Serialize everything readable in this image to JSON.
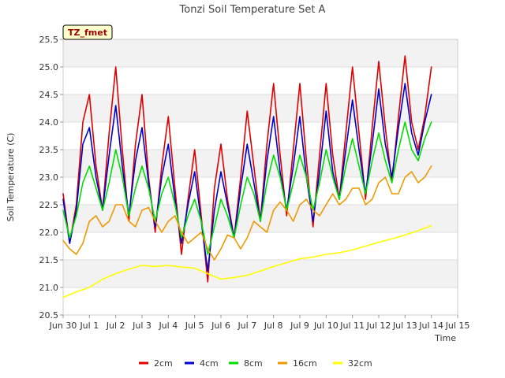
{
  "chart_data": {
    "type": "line",
    "title": "Tonzi Soil Temperature Set A",
    "xlabel": "Time",
    "ylabel": "Soil Temperature (C)",
    "site_tag": "TZ_fmet",
    "xlim": [
      0,
      15
    ],
    "ylim": [
      20.5,
      25.5
    ],
    "x_ticks": [
      {
        "value": 0,
        "label": "Jun 30"
      },
      {
        "value": 1,
        "label": "Jul 1"
      },
      {
        "value": 2,
        "label": "Jul 2"
      },
      {
        "value": 3,
        "label": "Jul 3"
      },
      {
        "value": 4,
        "label": "Jul 4"
      },
      {
        "value": 5,
        "label": "Jul 5"
      },
      {
        "value": 6,
        "label": "Jul 6"
      },
      {
        "value": 7,
        "label": "Jul 7"
      },
      {
        "value": 8,
        "label": "Jul 8"
      },
      {
        "value": 9,
        "label": "Jul 9"
      },
      {
        "value": 10,
        "label": "Jul 10"
      },
      {
        "value": 11,
        "label": "Jul 11"
      },
      {
        "value": 12,
        "label": "Jul 12"
      },
      {
        "value": 13,
        "label": "Jul 13"
      },
      {
        "value": 14,
        "label": "Jul 14"
      },
      {
        "value": 15,
        "label": "Jul 15"
      }
    ],
    "y_ticks": [
      {
        "value": 20.5,
        "label": "20.5"
      },
      {
        "value": 21.0,
        "label": "21.0"
      },
      {
        "value": 21.5,
        "label": "21.5"
      },
      {
        "value": 22.0,
        "label": "22.0"
      },
      {
        "value": 22.5,
        "label": "22.5"
      },
      {
        "value": 23.0,
        "label": "23.0"
      },
      {
        "value": 23.5,
        "label": "23.5"
      },
      {
        "value": 24.0,
        "label": "24.0"
      },
      {
        "value": 24.5,
        "label": "24.5"
      },
      {
        "value": 25.0,
        "label": "25.0"
      },
      {
        "value": 25.5,
        "label": "25.5"
      }
    ],
    "grid": true,
    "background_bands": "alternating grey bands between y gridlines",
    "legend_position": "bottom",
    "series": [
      {
        "name": "2cm",
        "color": "#dd0000",
        "x": [
          0.0,
          0.25,
          0.5,
          0.75,
          1.0,
          1.25,
          1.5,
          1.75,
          2.0,
          2.25,
          2.5,
          2.75,
          3.0,
          3.25,
          3.5,
          3.75,
          4.0,
          4.25,
          4.5,
          4.75,
          5.0,
          5.25,
          5.5,
          5.75,
          6.0,
          6.25,
          6.5,
          6.75,
          7.0,
          7.25,
          7.5,
          7.75,
          8.0,
          8.25,
          8.5,
          8.75,
          9.0,
          9.25,
          9.5,
          9.75,
          10.0,
          10.25,
          10.5,
          10.75,
          11.0,
          11.25,
          11.5,
          11.75,
          12.0,
          12.25,
          12.5,
          12.75,
          13.0,
          13.25,
          13.5,
          13.75,
          14.0
        ],
        "y": [
          22.7,
          21.8,
          22.5,
          24.0,
          24.5,
          23.2,
          22.4,
          23.8,
          25.0,
          23.5,
          22.2,
          23.6,
          24.5,
          23.0,
          22.0,
          23.2,
          24.1,
          22.8,
          21.6,
          22.6,
          23.5,
          22.3,
          21.1,
          22.8,
          23.6,
          22.6,
          21.9,
          23.0,
          24.2,
          23.2,
          22.2,
          23.6,
          24.7,
          23.4,
          22.3,
          23.5,
          24.7,
          23.3,
          22.1,
          23.4,
          24.7,
          23.4,
          22.6,
          23.8,
          25.0,
          23.8,
          22.6,
          23.9,
          25.1,
          23.9,
          22.9,
          24.1,
          25.2,
          24.0,
          23.5,
          24.1,
          25.0
        ]
      },
      {
        "name": "4cm",
        "color": "#0000cc",
        "x": [
          0.0,
          0.25,
          0.5,
          0.75,
          1.0,
          1.25,
          1.5,
          1.75,
          2.0,
          2.25,
          2.5,
          2.75,
          3.0,
          3.25,
          3.5,
          3.75,
          4.0,
          4.25,
          4.5,
          4.75,
          5.0,
          5.25,
          5.5,
          5.75,
          6.0,
          6.25,
          6.5,
          6.75,
          7.0,
          7.25,
          7.5,
          7.75,
          8.0,
          8.25,
          8.5,
          8.75,
          9.0,
          9.25,
          9.5,
          9.75,
          10.0,
          10.25,
          10.5,
          10.75,
          11.0,
          11.25,
          11.5,
          11.75,
          12.0,
          12.25,
          12.5,
          12.75,
          13.0,
          13.25,
          13.5,
          13.75,
          14.0
        ],
        "y": [
          22.6,
          21.8,
          22.4,
          23.6,
          23.9,
          23.0,
          22.4,
          23.4,
          24.3,
          23.2,
          22.3,
          23.3,
          23.9,
          22.9,
          22.1,
          23.0,
          23.6,
          22.6,
          21.8,
          22.5,
          23.1,
          22.2,
          21.3,
          22.4,
          23.1,
          22.5,
          21.9,
          22.8,
          23.6,
          22.9,
          22.2,
          23.3,
          24.1,
          23.1,
          22.4,
          23.2,
          24.1,
          23.0,
          22.2,
          23.1,
          24.2,
          23.1,
          22.6,
          23.5,
          24.4,
          23.5,
          22.7,
          23.6,
          24.6,
          23.6,
          23.0,
          23.9,
          24.7,
          23.8,
          23.4,
          24.0,
          24.5
        ]
      },
      {
        "name": "8cm",
        "color": "#00dd00",
        "x": [
          0.0,
          0.25,
          0.5,
          0.75,
          1.0,
          1.25,
          1.5,
          1.75,
          2.0,
          2.25,
          2.5,
          2.75,
          3.0,
          3.25,
          3.5,
          3.75,
          4.0,
          4.25,
          4.5,
          4.75,
          5.0,
          5.25,
          5.5,
          5.75,
          6.0,
          6.25,
          6.5,
          6.75,
          7.0,
          7.25,
          7.5,
          7.75,
          8.0,
          8.25,
          8.5,
          8.75,
          9.0,
          9.25,
          9.5,
          9.75,
          10.0,
          10.25,
          10.5,
          10.75,
          11.0,
          11.25,
          11.5,
          11.75,
          12.0,
          12.25,
          12.5,
          12.75,
          13.0,
          13.25,
          13.5,
          13.75,
          14.0
        ],
        "y": [
          22.4,
          21.9,
          22.3,
          22.9,
          23.2,
          22.8,
          22.4,
          22.9,
          23.5,
          23.0,
          22.3,
          22.8,
          23.2,
          22.8,
          22.2,
          22.7,
          23.0,
          22.5,
          21.9,
          22.3,
          22.6,
          22.2,
          21.6,
          22.1,
          22.6,
          22.3,
          21.9,
          22.5,
          23.0,
          22.7,
          22.2,
          22.9,
          23.4,
          23.0,
          22.4,
          22.9,
          23.4,
          23.0,
          22.4,
          22.9,
          23.5,
          23.0,
          22.6,
          23.2,
          23.7,
          23.2,
          22.7,
          23.3,
          23.8,
          23.3,
          22.9,
          23.5,
          24.0,
          23.5,
          23.3,
          23.7,
          24.0
        ]
      },
      {
        "name": "16cm",
        "color": "#ee9900",
        "x": [
          0.0,
          0.25,
          0.5,
          0.75,
          1.0,
          1.25,
          1.5,
          1.75,
          2.0,
          2.25,
          2.5,
          2.75,
          3.0,
          3.25,
          3.5,
          3.75,
          4.0,
          4.25,
          4.5,
          4.75,
          5.0,
          5.25,
          5.5,
          5.75,
          6.0,
          6.25,
          6.5,
          6.75,
          7.0,
          7.25,
          7.5,
          7.75,
          8.0,
          8.25,
          8.5,
          8.75,
          9.0,
          9.25,
          9.5,
          9.75,
          10.0,
          10.25,
          10.5,
          10.75,
          11.0,
          11.25,
          11.5,
          11.75,
          12.0,
          12.25,
          12.5,
          12.75,
          13.0,
          13.25,
          13.5,
          13.75,
          14.0
        ],
        "y": [
          21.85,
          21.7,
          21.6,
          21.8,
          22.2,
          22.3,
          22.1,
          22.2,
          22.5,
          22.5,
          22.2,
          22.1,
          22.4,
          22.45,
          22.2,
          22.0,
          22.2,
          22.3,
          22.0,
          21.8,
          21.9,
          22.0,
          21.7,
          21.5,
          21.7,
          21.95,
          21.9,
          21.7,
          21.9,
          22.2,
          22.1,
          22.0,
          22.4,
          22.55,
          22.4,
          22.2,
          22.5,
          22.6,
          22.4,
          22.3,
          22.5,
          22.7,
          22.5,
          22.6,
          22.8,
          22.8,
          22.5,
          22.6,
          22.9,
          23.0,
          22.7,
          22.7,
          23.0,
          23.1,
          22.9,
          23.0,
          23.2
        ]
      },
      {
        "name": "32cm",
        "color": "#ffff00",
        "x": [
          0.0,
          0.5,
          1.0,
          1.5,
          2.0,
          2.5,
          3.0,
          3.5,
          4.0,
          4.5,
          5.0,
          5.5,
          6.0,
          6.5,
          7.0,
          7.5,
          8.0,
          8.5,
          9.0,
          9.5,
          10.0,
          10.5,
          11.0,
          11.5,
          12.0,
          12.5,
          13.0,
          13.5,
          14.0
        ],
        "y": [
          20.82,
          20.92,
          21.0,
          21.15,
          21.25,
          21.33,
          21.4,
          21.38,
          21.4,
          21.37,
          21.35,
          21.25,
          21.15,
          21.18,
          21.22,
          21.3,
          21.38,
          21.45,
          21.52,
          21.55,
          21.6,
          21.63,
          21.68,
          21.75,
          21.82,
          21.88,
          21.95,
          22.03,
          22.12
        ]
      }
    ]
  }
}
